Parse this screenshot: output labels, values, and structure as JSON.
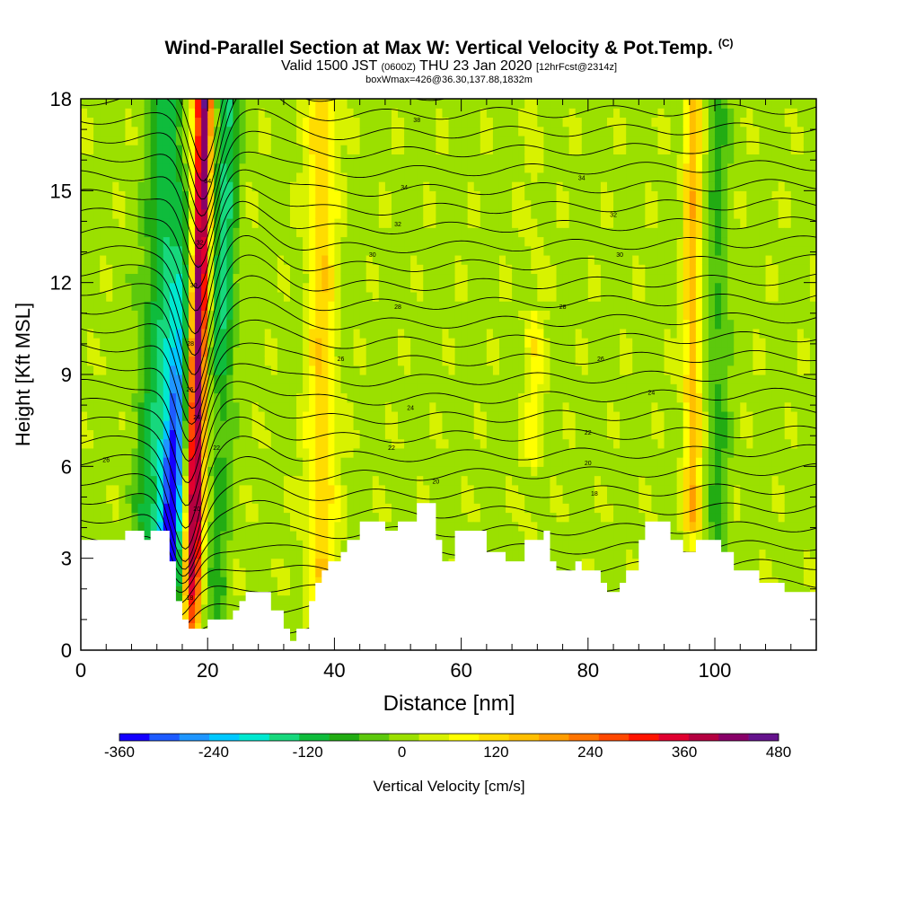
{
  "title": {
    "main": "Wind-Parallel Section at Max W: Vertical Velocity & Pot.Temp.",
    "copyright": "(C)",
    "valid_prefix": "Valid 1500 JST",
    "valid_utc": "(0600Z)",
    "valid_date": "THU 23 Jan 2020",
    "forecast": "[12hrFcst@2314z]",
    "box": "boxWmax=426@36.30,137.88,1832m"
  },
  "chart_data": {
    "type": "heatmap",
    "xlabel": "Distance [nm]",
    "ylabel": "Height [Kft MSL]",
    "xlim": [
      0,
      116
    ],
    "ylim": [
      0,
      18
    ],
    "x_ticks": [
      0,
      20,
      40,
      60,
      80,
      100
    ],
    "y_ticks": [
      0,
      3,
      6,
      9,
      12,
      15,
      18
    ],
    "colorbar": {
      "label": "Vertical Velocity [cm/s]",
      "range": [
        -360,
        480
      ],
      "tick_labels": [
        "-360",
        "-240",
        "-120",
        "0",
        "120",
        "240",
        "360",
        "480"
      ],
      "colors": [
        "#1400ff",
        "#1e5bff",
        "#1f96ff",
        "#00c8ff",
        "#00e8d0",
        "#17d87d",
        "#0fbc3c",
        "#22ac13",
        "#5dc90d",
        "#9be000",
        "#d8f200",
        "#ffff00",
        "#ffdc00",
        "#ffbf00",
        "#ff9d00",
        "#ff7400",
        "#ff4800",
        "#ff1400",
        "#e00030",
        "#b40040",
        "#880068",
        "#64128c"
      ]
    },
    "terrain_kft": [
      [
        0,
        3.6
      ],
      [
        7,
        3.6
      ],
      [
        7,
        3.9
      ],
      [
        10,
        3.9
      ],
      [
        10,
        3.6
      ],
      [
        11,
        3.6
      ],
      [
        11,
        3.9
      ],
      [
        14,
        3.9
      ],
      [
        14,
        2.9
      ],
      [
        15,
        2.9
      ],
      [
        15,
        1.6
      ],
      [
        16,
        1.6
      ],
      [
        16,
        1.0
      ],
      [
        17,
        1.0
      ],
      [
        17,
        0.7
      ],
      [
        20,
        0.7
      ],
      [
        20,
        1.0
      ],
      [
        24,
        1.0
      ],
      [
        24,
        1.3
      ],
      [
        25,
        1.3
      ],
      [
        25,
        1.6
      ],
      [
        26,
        1.6
      ],
      [
        26,
        1.9
      ],
      [
        30,
        1.9
      ],
      [
        30,
        1.3
      ],
      [
        32,
        1.3
      ],
      [
        32,
        0.7
      ],
      [
        33,
        0.7
      ],
      [
        33,
        0.3
      ],
      [
        34,
        0.3
      ],
      [
        34,
        0.7
      ],
      [
        36,
        0.7
      ],
      [
        36,
        1.6
      ],
      [
        37,
        1.6
      ],
      [
        37,
        2.2
      ],
      [
        38,
        2.2
      ],
      [
        38,
        2.6
      ],
      [
        39,
        2.6
      ],
      [
        39,
        2.9
      ],
      [
        41,
        2.9
      ],
      [
        41,
        3.2
      ],
      [
        42,
        3.2
      ],
      [
        42,
        3.6
      ],
      [
        44,
        3.6
      ],
      [
        44,
        4.2
      ],
      [
        48,
        4.2
      ],
      [
        48,
        3.9
      ],
      [
        50,
        3.9
      ],
      [
        50,
        4.2
      ],
      [
        53,
        4.2
      ],
      [
        53,
        4.8
      ],
      [
        56,
        4.8
      ],
      [
        56,
        3.6
      ],
      [
        57,
        3.6
      ],
      [
        57,
        2.9
      ],
      [
        59,
        2.9
      ],
      [
        59,
        3.9
      ],
      [
        64,
        3.9
      ],
      [
        64,
        3.2
      ],
      [
        67,
        3.2
      ],
      [
        67,
        2.9
      ],
      [
        70,
        2.9
      ],
      [
        70,
        3.6
      ],
      [
        73,
        3.6
      ],
      [
        73,
        3.9
      ],
      [
        74,
        3.9
      ],
      [
        74,
        2.9
      ],
      [
        75,
        2.9
      ],
      [
        75,
        2.6
      ],
      [
        78,
        2.6
      ],
      [
        78,
        2.9
      ],
      [
        79,
        2.9
      ],
      [
        79,
        2.6
      ],
      [
        82,
        2.6
      ],
      [
        82,
        2.2
      ],
      [
        83,
        2.2
      ],
      [
        83,
        1.9
      ],
      [
        85,
        1.9
      ],
      [
        85,
        2.2
      ],
      [
        86,
        2.2
      ],
      [
        86,
        2.6
      ],
      [
        88,
        2.6
      ],
      [
        88,
        3.6
      ],
      [
        89,
        3.6
      ],
      [
        89,
        4.2
      ],
      [
        93,
        4.2
      ],
      [
        93,
        3.6
      ],
      [
        95,
        3.6
      ],
      [
        95,
        3.2
      ],
      [
        97,
        3.2
      ],
      [
        97,
        3.6
      ],
      [
        101,
        3.6
      ],
      [
        101,
        3.2
      ],
      [
        103,
        3.2
      ],
      [
        103,
        2.6
      ],
      [
        107,
        2.6
      ],
      [
        107,
        2.2
      ],
      [
        111,
        2.2
      ],
      [
        111,
        1.9
      ],
      [
        116,
        1.9
      ]
    ],
    "theta_contour_labels": [
      {
        "text": "38",
        "x": 53,
        "y": 17.3
      },
      {
        "text": "34",
        "x": 51,
        "y": 15.1
      },
      {
        "text": "34",
        "x": 79,
        "y": 15.4
      },
      {
        "text": "32",
        "x": 50,
        "y": 13.9
      },
      {
        "text": "32",
        "x": 84,
        "y": 14.2
      },
      {
        "text": "30",
        "x": 46,
        "y": 12.9
      },
      {
        "text": "30",
        "x": 85,
        "y": 12.9
      },
      {
        "text": "28",
        "x": 50,
        "y": 11.2
      },
      {
        "text": "28",
        "x": 76,
        "y": 11.2
      },
      {
        "text": "26",
        "x": 41,
        "y": 9.5
      },
      {
        "text": "26",
        "x": 82,
        "y": 9.5
      },
      {
        "text": "24",
        "x": 52,
        "y": 7.9
      },
      {
        "text": "24",
        "x": 90,
        "y": 8.4
      },
      {
        "text": "22",
        "x": 49,
        "y": 6.6
      },
      {
        "text": "22",
        "x": 80,
        "y": 7.1
      },
      {
        "text": "20",
        "x": 56,
        "y": 5.5
      },
      {
        "text": "20",
        "x": 80,
        "y": 6.1
      },
      {
        "text": "18",
        "x": 81,
        "y": 5.1
      },
      {
        "text": "26",
        "x": 4,
        "y": 6.2
      },
      {
        "text": "34",
        "x": 20,
        "y": 15.3
      },
      {
        "text": "32",
        "x": 18.8,
        "y": 13.3
      },
      {
        "text": "30",
        "x": 17.8,
        "y": 11.9
      },
      {
        "text": "28",
        "x": 17.3,
        "y": 10.0
      },
      {
        "text": "26",
        "x": 17.2,
        "y": 8.5
      },
      {
        "text": "24",
        "x": 18.3,
        "y": 7.6
      },
      {
        "text": "22",
        "x": 21.4,
        "y": 6.6
      },
      {
        "text": "20",
        "x": 18.3,
        "y": 4.6
      },
      {
        "text": "18",
        "x": 17.2,
        "y": 1.7
      }
    ]
  }
}
